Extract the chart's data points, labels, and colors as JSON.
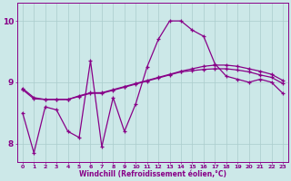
{
  "xlabel": "Windchill (Refroidissement éolien,°C)",
  "x": [
    0,
    1,
    2,
    3,
    4,
    5,
    6,
    7,
    8,
    9,
    10,
    11,
    12,
    13,
    14,
    15,
    16,
    17,
    18,
    19,
    20,
    21,
    22,
    23
  ],
  "line1": [
    8.5,
    7.85,
    8.6,
    8.55,
    8.2,
    8.1,
    9.35,
    7.95,
    8.75,
    8.2,
    8.65,
    9.25,
    9.7,
    10.0,
    10.0,
    9.85,
    9.75,
    9.3,
    9.1,
    9.05,
    9.0,
    9.05,
    9.0,
    8.82
  ],
  "line2": [
    8.9,
    8.75,
    8.72,
    8.72,
    8.72,
    8.78,
    8.83,
    8.83,
    8.88,
    8.93,
    8.98,
    9.03,
    9.08,
    9.13,
    9.18,
    9.22,
    9.26,
    9.28,
    9.28,
    9.26,
    9.22,
    9.18,
    9.13,
    9.03
  ],
  "line3": [
    8.88,
    8.73,
    8.72,
    8.72,
    8.72,
    8.77,
    8.82,
    8.82,
    8.87,
    8.92,
    8.97,
    9.02,
    9.07,
    9.12,
    9.17,
    9.19,
    9.21,
    9.22,
    9.22,
    9.2,
    9.17,
    9.12,
    9.08,
    8.98
  ],
  "line_color": "#880088",
  "bg_color": "#cce8e8",
  "grid_color": "#aacccc",
  "ylim": [
    7.7,
    10.3
  ],
  "yticks": [
    8,
    9,
    10
  ],
  "xticks": [
    0,
    1,
    2,
    3,
    4,
    5,
    6,
    7,
    8,
    9,
    10,
    11,
    12,
    13,
    14,
    15,
    16,
    17,
    18,
    19,
    20,
    21,
    22,
    23
  ]
}
